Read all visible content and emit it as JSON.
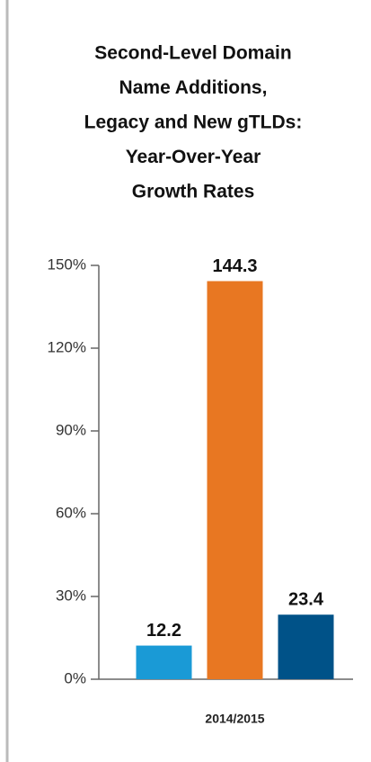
{
  "chart_data": {
    "type": "bar",
    "title": [
      "Second-Level Domain",
      "Name Additions,",
      "Legacy and New gTLDs:",
      "Year-Over-Year",
      "Growth Rates"
    ],
    "categories": [
      "2014/2015"
    ],
    "series": [
      {
        "color": "#1a9ad6",
        "values": [
          12.2
        ]
      },
      {
        "color": "#e87722",
        "values": [
          144.3
        ]
      },
      {
        "color": "#005288",
        "values": [
          23.4
        ]
      }
    ],
    "ylim": [
      0,
      150
    ],
    "yticks": [
      {
        "value": 0,
        "label": "0%"
      },
      {
        "value": 30,
        "label": "30%"
      },
      {
        "value": 60,
        "label": "60%"
      },
      {
        "value": 90,
        "label": "90%"
      },
      {
        "value": 120,
        "label": "120%"
      },
      {
        "value": 150,
        "label": "150%"
      }
    ],
    "grid": false
  }
}
